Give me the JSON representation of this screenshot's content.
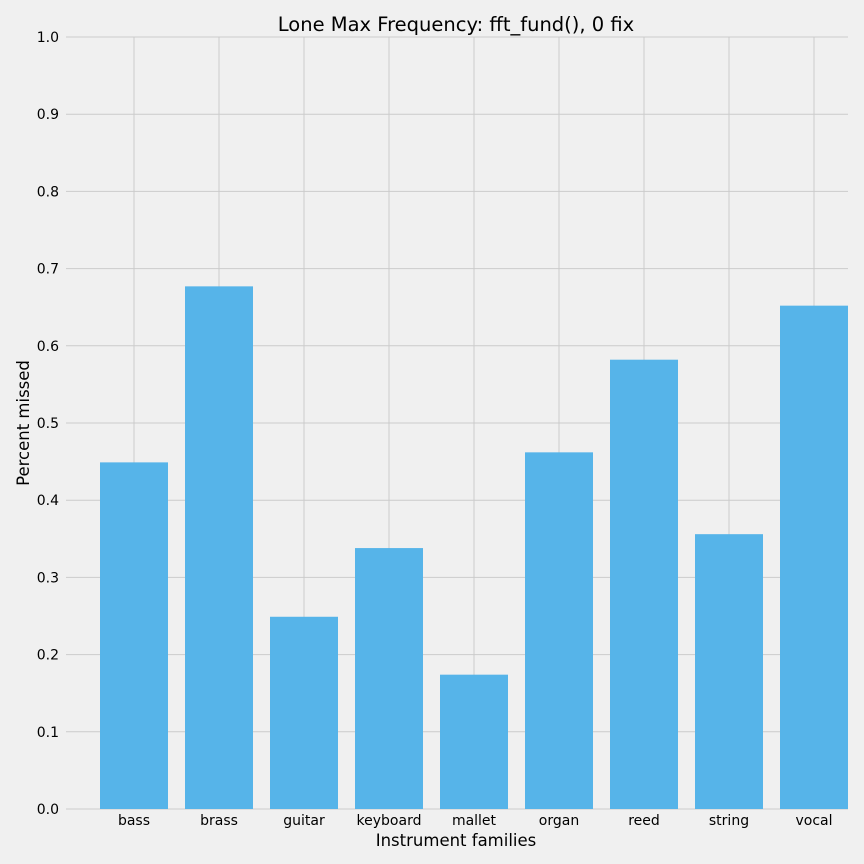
{
  "chart_data": {
    "type": "bar",
    "title": "Lone Max Frequency: fft_fund(), 0 fix",
    "xlabel": "Instrument families",
    "ylabel": "Percent missed",
    "categories": [
      "bass",
      "brass",
      "guitar",
      "keyboard",
      "mallet",
      "organ",
      "reed",
      "string",
      "vocal"
    ],
    "values": [
      0.449,
      0.677,
      0.249,
      0.338,
      0.174,
      0.462,
      0.582,
      0.356,
      0.652
    ],
    "ylim": [
      0,
      1.0
    ],
    "yticks": [
      "0.0",
      "0.1",
      "0.2",
      "0.3",
      "0.4",
      "0.5",
      "0.6",
      "0.7",
      "0.8",
      "0.9",
      "1.0"
    ],
    "grid": true,
    "legend": "none",
    "colors": {
      "bar": "#56b4e9",
      "background": "#f0f0f0",
      "grid": "#cbcbcb"
    }
  }
}
